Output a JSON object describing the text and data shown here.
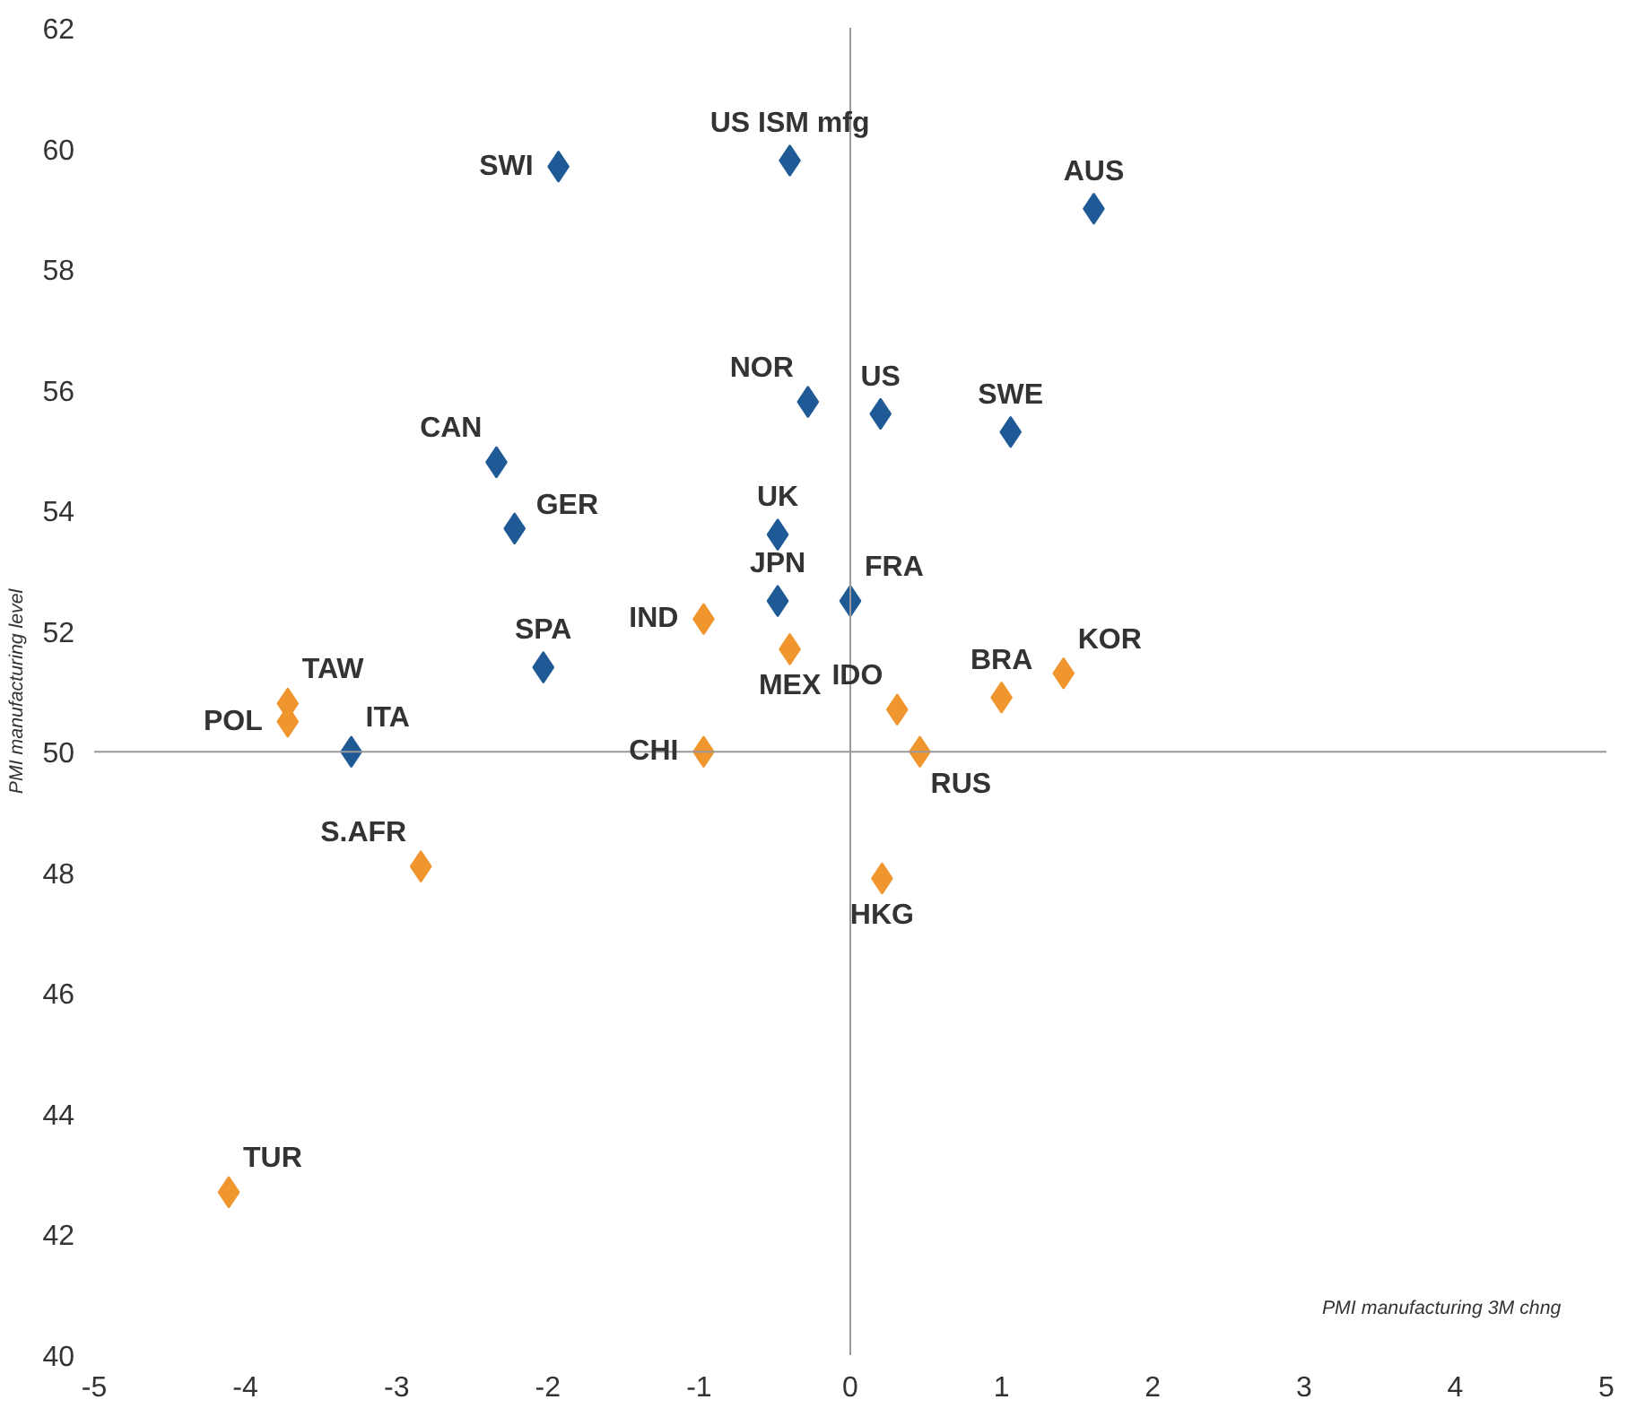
{
  "chart_data": {
    "type": "scatter",
    "xlabel": "PMI manufacturing 3M chng",
    "ylabel": "PMI manufacturing level",
    "marker": "diamond",
    "grid": false,
    "xlim": [
      -5,
      5
    ],
    "xticks": [
      -5,
      -4,
      -3,
      -2,
      -1,
      0,
      1,
      2,
      3,
      4,
      5
    ],
    "ylim": [
      40,
      62
    ],
    "yticks": [
      40,
      42,
      44,
      46,
      48,
      50,
      52,
      54,
      56,
      58,
      60,
      62
    ],
    "series": [
      {
        "color": "#1f5a96",
        "x": [
          -1.93,
          -0.4,
          1.61,
          -0.28,
          0.2,
          1.06,
          -2.34,
          -2.22,
          -0.48,
          -0.48,
          0.0,
          -2.03,
          -3.3
        ],
        "values": [
          59.7,
          59.8,
          59.0,
          55.8,
          55.6,
          55.3,
          54.8,
          53.7,
          53.6,
          52.5,
          52.5,
          51.4,
          50.0
        ]
      },
      {
        "color": "#f0962e",
        "x": [
          -3.72,
          -3.72,
          -2.84,
          -4.11,
          -0.97,
          -0.97,
          -0.4,
          0.31,
          0.46,
          0.21,
          1.0,
          1.41
        ],
        "values": [
          50.8,
          50.5,
          48.1,
          42.7,
          52.2,
          50.0,
          51.7,
          50.7,
          50.0,
          47.9,
          50.9,
          51.3
        ]
      }
    ],
    "ref_lines": [
      {
        "axis": "x",
        "value": 0,
        "label": null
      },
      {
        "axis": "y",
        "value": 50,
        "label": null
      }
    ],
    "annotations": [
      {
        "text": "SWI",
        "x": -1.93,
        "y": 59.7
      },
      {
        "text": "US ISM mfg",
        "x": -0.4,
        "y": 59.8
      },
      {
        "text": "AUS",
        "x": 1.61,
        "y": 59.0
      },
      {
        "text": "NOR",
        "x": -0.28,
        "y": 55.8
      },
      {
        "text": "US",
        "x": 0.2,
        "y": 55.6
      },
      {
        "text": "SWE",
        "x": 1.06,
        "y": 55.3
      },
      {
        "text": "CAN",
        "x": -2.34,
        "y": 54.8
      },
      {
        "text": "GER",
        "x": -2.22,
        "y": 53.7
      },
      {
        "text": "UK",
        "x": -0.48,
        "y": 53.6
      },
      {
        "text": "JPN",
        "x": -0.48,
        "y": 52.5
      },
      {
        "text": "FRA",
        "x": 0.0,
        "y": 52.5
      },
      {
        "text": "SPA",
        "x": -2.03,
        "y": 51.4
      },
      {
        "text": "ITA",
        "x": -3.3,
        "y": 50.0
      },
      {
        "text": "TAW",
        "x": -3.72,
        "y": 50.8
      },
      {
        "text": "POL",
        "x": -3.72,
        "y": 50.5
      },
      {
        "text": "S.AFR",
        "x": -2.84,
        "y": 48.1
      },
      {
        "text": "TUR",
        "x": -4.11,
        "y": 42.7
      },
      {
        "text": "IND",
        "x": -0.97,
        "y": 52.2
      },
      {
        "text": "CHI",
        "x": -0.97,
        "y": 50.0
      },
      {
        "text": "MEX",
        "x": -0.4,
        "y": 51.7
      },
      {
        "text": "IDO",
        "x": 0.31,
        "y": 50.7
      },
      {
        "text": "RUS",
        "x": 0.46,
        "y": 50.0
      },
      {
        "text": "HKG",
        "x": 0.21,
        "y": 47.9
      },
      {
        "text": "BRA",
        "x": 1.0,
        "y": 50.9
      },
      {
        "text": "KOR",
        "x": 1.41,
        "y": 51.3
      }
    ]
  }
}
